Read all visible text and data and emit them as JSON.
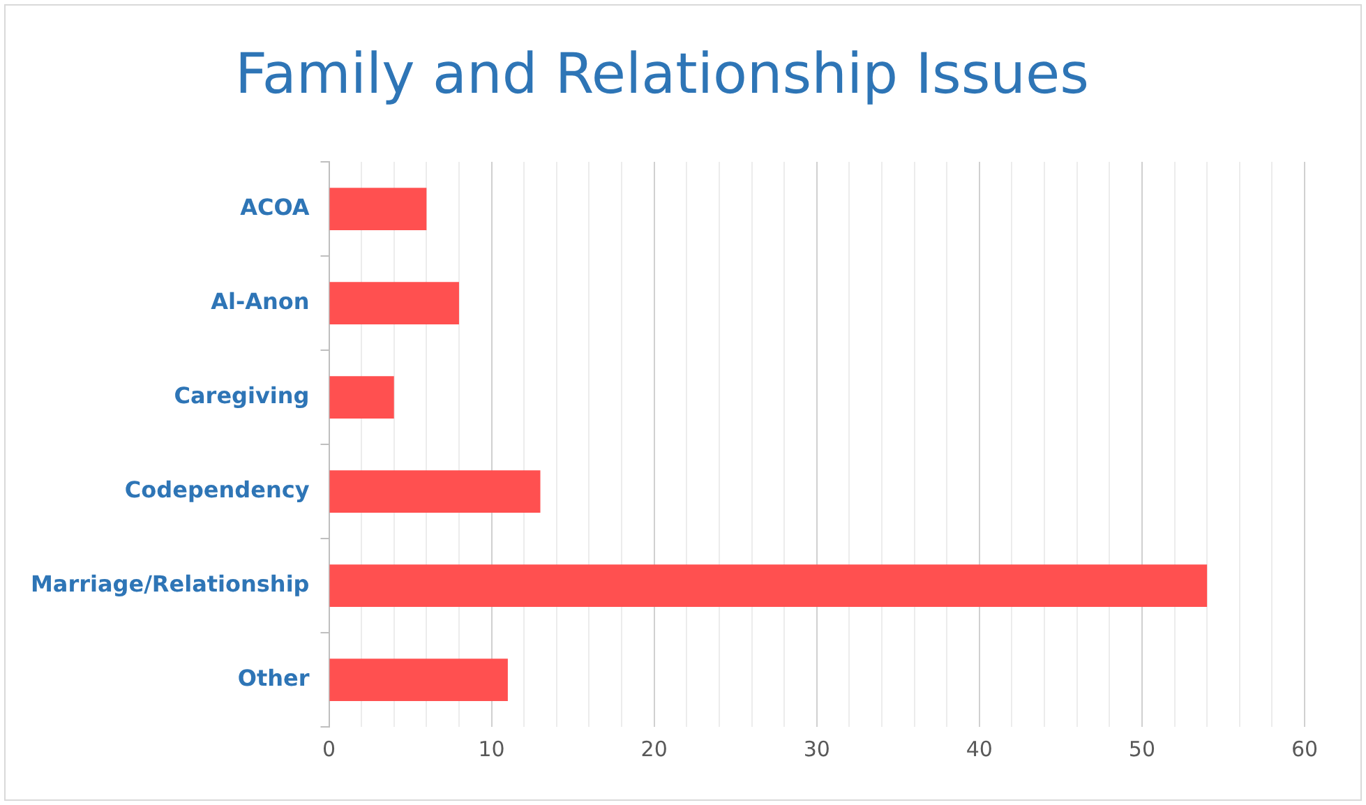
{
  "chart_data": {
    "type": "bar",
    "orientation": "horizontal",
    "title": "Family and Relationship Issues",
    "categories": [
      "ACOA",
      "Al-Anon",
      "Caregiving",
      "Codependency",
      "Marriage/Relationship",
      "Other"
    ],
    "values": [
      6,
      8,
      4,
      13,
      54,
      11
    ],
    "color": "#ff5050",
    "xlim": [
      0,
      60
    ],
    "xticks": [
      0,
      {
        "value": 2,
        "label": null
      },
      {
        "value": 4,
        "label": null
      },
      {
        "value": 6,
        "label": null
      },
      {
        "value": 8,
        "label": null
      },
      10,
      {
        "value": 12,
        "label": null
      },
      {
        "value": 14,
        "label": null
      },
      {
        "value": 16,
        "label": null
      },
      {
        "value": 18,
        "label": null
      },
      20,
      {
        "value": 22,
        "label": null
      },
      {
        "value": 24,
        "label": null
      },
      {
        "value": 26,
        "label": null
      },
      {
        "value": 28,
        "label": null
      },
      30,
      {
        "value": 32,
        "label": null
      },
      {
        "value": 34,
        "label": null
      },
      {
        "value": 36,
        "label": null
      },
      {
        "value": 38,
        "label": null
      },
      40,
      {
        "value": 42,
        "label": null
      },
      {
        "value": 44,
        "label": null
      },
      {
        "value": 46,
        "label": null
      },
      {
        "value": 48,
        "label": null
      },
      50,
      {
        "value": 52,
        "label": null
      },
      {
        "value": 54,
        "label": null
      },
      {
        "value": 56,
        "label": null
      },
      {
        "value": 58,
        "label": null
      },
      60
    ],
    "grid": "x",
    "legend": false
  }
}
